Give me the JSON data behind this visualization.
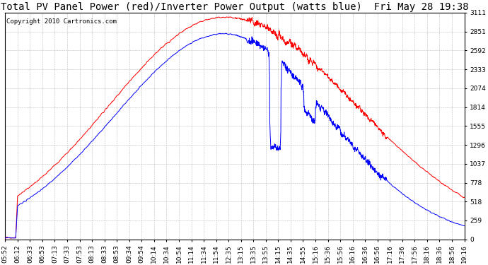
{
  "title": "Total PV Panel Power (red)/Inverter Power Output (watts blue)  Fri May 28 19:38",
  "copyright": "Copyright 2010 Cartronics.com",
  "ymin": 0.0,
  "ymax": 3110.6,
  "yticks": [
    0.0,
    259.2,
    518.4,
    777.7,
    1036.9,
    1296.1,
    1555.3,
    1814.5,
    2073.8,
    2333.0,
    2592.2,
    2851.4,
    3110.6
  ],
  "xtick_labels": [
    "05:52",
    "06:12",
    "06:33",
    "06:53",
    "07:13",
    "07:33",
    "07:53",
    "08:13",
    "08:33",
    "08:53",
    "09:34",
    "09:54",
    "10:14",
    "10:34",
    "10:54",
    "11:14",
    "11:34",
    "11:54",
    "12:35",
    "13:15",
    "13:35",
    "13:55",
    "14:15",
    "14:35",
    "14:55",
    "15:16",
    "15:36",
    "15:56",
    "16:16",
    "16:36",
    "16:56",
    "17:16",
    "17:36",
    "17:56",
    "18:16",
    "18:36",
    "18:56",
    "19:16"
  ],
  "red_color": "#ff0000",
  "blue_color": "#0000ff",
  "bg_color": "#ffffff",
  "grid_color": "#bbbbbb",
  "title_fontsize": 10,
  "copyright_fontsize": 6.5,
  "tick_fontsize": 6.5
}
